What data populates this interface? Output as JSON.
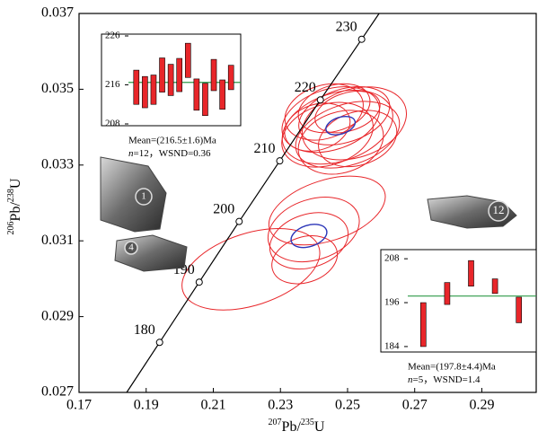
{
  "chart_data": {
    "type": "concordia",
    "x_label": [
      "207",
      "Pb/",
      "235",
      "U"
    ],
    "y_label": [
      "206",
      "Pb/",
      "238",
      "U"
    ],
    "xlim": [
      0.17,
      0.3062
    ],
    "ylim": [
      0.027,
      0.037
    ],
    "xticks": [
      0.17,
      0.19,
      0.21,
      0.23,
      0.25,
      0.27,
      0.29
    ],
    "yticks": [
      0.027,
      0.029,
      0.031,
      0.033,
      0.035,
      0.037
    ],
    "concordia": {
      "curve_x": [
        0.1842,
        0.194,
        0.2058,
        0.2177,
        0.2298,
        0.2419,
        0.2542,
        0.2594
      ],
      "curve_y": [
        0.027,
        0.02832,
        0.02991,
        0.03151,
        0.03311,
        0.03472,
        0.03632,
        0.037
      ],
      "ages": [
        180,
        190,
        200,
        210,
        220,
        230
      ],
      "x": [
        0.194,
        0.2058,
        0.2177,
        0.2298,
        0.2419,
        0.2542
      ],
      "y": [
        0.02832,
        0.02991,
        0.03151,
        0.03311,
        0.03472,
        0.03632
      ]
    },
    "ellipse_tilt": -18,
    "groups": [
      {
        "color": "#e8262a",
        "x": [
          0.245,
          0.247,
          0.25,
          0.243,
          0.249,
          0.252,
          0.241,
          0.248,
          0.246,
          0.253,
          0.244,
          0.25
        ],
        "y": [
          0.0342,
          0.034,
          0.0338,
          0.0344,
          0.0343,
          0.0341,
          0.034,
          0.0336,
          0.0345,
          0.0337,
          0.0338,
          0.0344
        ],
        "x_err": [
          0.015,
          0.017,
          0.016,
          0.012,
          0.014,
          0.016,
          0.01,
          0.013,
          0.011,
          0.012,
          0.014,
          0.01
        ],
        "y_err": [
          0.0008,
          0.0009,
          0.0008,
          0.0007,
          0.0007,
          0.0009,
          0.0006,
          0.0008,
          0.0006,
          0.0007,
          0.0008,
          0.0005
        ]
      },
      {
        "color": "#e8262a",
        "x": [
          0.2212,
          0.2439,
          0.2385,
          0.2372,
          0.2399
        ],
        "y": [
          0.03025,
          0.0318,
          0.031,
          0.0305,
          0.0313
        ],
        "x_err": [
          0.0213,
          0.018,
          0.012,
          0.01,
          0.014
        ],
        "y_err": [
          0.00095,
          0.0008,
          0.0007,
          0.0006,
          0.0008
        ]
      },
      {
        "color": "#2b35b8",
        "x": [
          0.2479,
          0.2385
        ],
        "y": [
          0.03404,
          0.03113
        ],
        "x_err": [
          0.0045,
          0.0055
        ],
        "y_err": [
          0.00022,
          0.00028
        ]
      }
    ],
    "grain_labels": [
      "1",
      "4",
      "12"
    ],
    "insets": [
      {
        "ylim": [
          208,
          226
        ],
        "yticks": [
          208,
          216,
          226
        ],
        "values": [
          215.5,
          214.5,
          215,
          218,
          217,
          218,
          221,
          214,
          213,
          218,
          214,
          217.5
        ],
        "errors": [
          3.5,
          3.2,
          3.0,
          3.5,
          3.2,
          3.4,
          3.5,
          3.2,
          3.3,
          3.2,
          3.0,
          2.5
        ],
        "mean": 216.5,
        "color": "#e8262a",
        "mean_color": "#2e9a48",
        "mean_label": "Mean=(216.5±1.6)Ma",
        "n_label": "n",
        "stats_label": "=12，WSND=0.36"
      },
      {
        "ylim": [
          183,
          210
        ],
        "yticks": [
          184,
          196,
          208
        ],
        "values": [
          190,
          198.5,
          204,
          200.5,
          194
        ],
        "errors": [
          6,
          3,
          3.5,
          2,
          3.5
        ],
        "mean": 197.8,
        "color": "#e8262a",
        "mean_color": "#2e9a48",
        "mean_label": "Mean=(197.8±4.4)Ma",
        "n_label": "n",
        "stats_label": "=5，WSND=1.4"
      }
    ]
  }
}
